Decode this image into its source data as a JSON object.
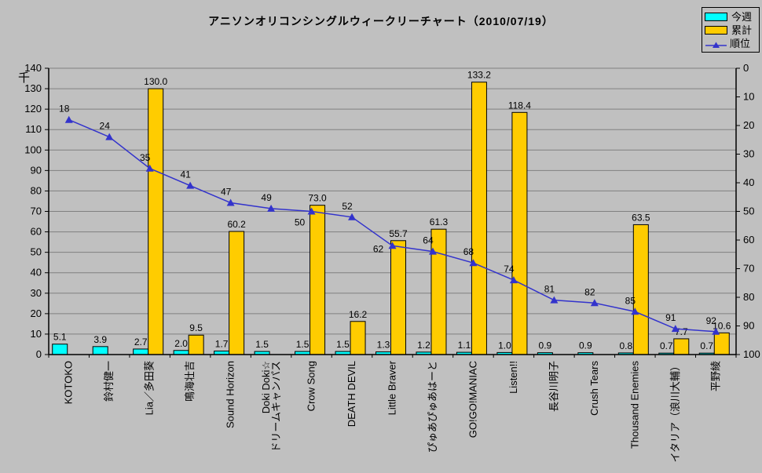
{
  "legend": {
    "items": [
      {
        "label": "今週",
        "type": "bar",
        "color": "#00FFFF"
      },
      {
        "label": "累計",
        "type": "bar",
        "color": "#FFCC00"
      },
      {
        "label": "順位",
        "type": "line",
        "color": "#3333CC"
      }
    ],
    "position": "top-right"
  },
  "chart_data": {
    "type": "combo-bar-line",
    "title": "アニソンオリコンシングルウィークリーチャート（2010/07/19）",
    "categories": [
      "KOTOKO",
      "鈴村健一",
      "Lia／多田葵",
      "鳴海壮吉",
      "Sound Horizon",
      "Doki Doki☆\nドリームキャンパス",
      "Crow Song",
      "DEATH DEVIL",
      "Little Braver",
      "ぴゅあぴゅあはーと",
      "GO!GO!MANIAC",
      "Listen!!",
      "長谷川明子",
      "Crush Tears",
      "Thousand Enemies",
      "イタリア（浪川大輔）",
      "平野綾"
    ],
    "series": [
      {
        "name": "今週",
        "type": "bar",
        "axis": "left",
        "color": "#00FFFF",
        "values": [
          5.1,
          3.9,
          2.7,
          2.0,
          1.7,
          1.5,
          1.5,
          1.5,
          1.3,
          1.2,
          1.1,
          1.0,
          0.9,
          0.9,
          0.8,
          0.7,
          0.7
        ]
      },
      {
        "name": "累計",
        "type": "bar",
        "axis": "left",
        "color": "#FFCC00",
        "values": [
          null,
          null,
          130.0,
          9.5,
          60.2,
          null,
          73.0,
          16.2,
          55.7,
          61.3,
          133.2,
          118.4,
          null,
          null,
          63.5,
          7.7,
          10.6
        ]
      },
      {
        "name": "順位",
        "type": "line",
        "axis": "right",
        "color": "#3333CC",
        "marker": "triangle",
        "values": [
          18,
          24,
          35,
          41,
          47,
          49,
          50,
          52,
          62,
          64,
          68,
          74,
          81,
          82,
          85,
          91,
          92
        ]
      }
    ],
    "left_axis": {
      "unit": "千",
      "min": 0,
      "max": 140,
      "step": 10,
      "ticks": [
        0,
        10,
        20,
        30,
        40,
        50,
        60,
        70,
        80,
        90,
        100,
        110,
        120,
        130,
        140
      ]
    },
    "right_axis": {
      "min": 0,
      "max": 100,
      "step": 10,
      "inverted": true,
      "ticks": [
        0,
        10,
        20,
        30,
        40,
        50,
        60,
        70,
        80,
        90,
        100
      ]
    },
    "grid": true,
    "legend_position": "top-right",
    "colors": {
      "background": "#C0C0C0",
      "gridline": "#808080",
      "axis": "#000000"
    },
    "rank_label_offsets": {
      "6": [
        -15,
        18
      ],
      "8": [
        -18,
        8
      ]
    }
  }
}
